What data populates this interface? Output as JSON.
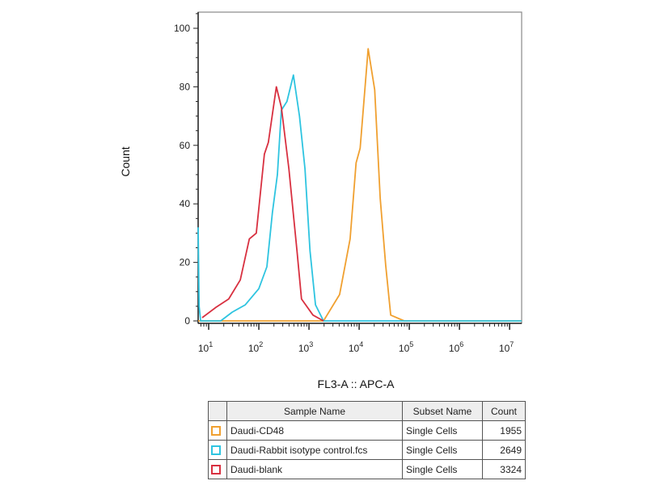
{
  "chart_data": {
    "type": "line",
    "title": "",
    "xlabel": "FL3-A :: APC-A",
    "ylabel": "Count",
    "x_scale": "log10",
    "xlim_log10": [
      0.79,
      7.24
    ],
    "ylim": [
      0,
      105
    ],
    "y_ticks": [
      0,
      20,
      40,
      60,
      80,
      100
    ],
    "x_ticks": [
      {
        "base": "10",
        "exp": "1",
        "log10": 1
      },
      {
        "base": "10",
        "exp": "2",
        "log10": 2
      },
      {
        "base": "10",
        "exp": "3",
        "log10": 3
      },
      {
        "base": "10",
        "exp": "4",
        "log10": 4
      },
      {
        "base": "10",
        "exp": "5",
        "log10": 5
      },
      {
        "base": "10",
        "exp": "6",
        "log10": 6
      },
      {
        "base": "10",
        "exp": "7",
        "log10": 7
      }
    ],
    "grid": false,
    "series": [
      {
        "name": "Daudi-CD48",
        "color": "#f0a030",
        "x_log10": [
          0.79,
          3.29,
          3.61,
          3.82,
          3.94,
          4.02,
          4.18,
          4.31,
          4.42,
          4.53,
          4.63,
          4.9,
          7.24
        ],
        "values": [
          0,
          0,
          9,
          28,
          54,
          59,
          93,
          79,
          42,
          19,
          2,
          0,
          0
        ]
      },
      {
        "name": "Daudi-Rabbit isotype control.fcs",
        "color": "#2ec4e0",
        "x_log10": [
          0.79,
          0.81,
          0.84,
          1.24,
          1.47,
          1.73,
          2.0,
          2.16,
          2.27,
          2.37,
          2.45,
          2.56,
          2.69,
          2.81,
          2.92,
          3.02,
          3.13,
          3.29,
          7.24
        ],
        "values": [
          32,
          5,
          0,
          0,
          3,
          5.5,
          11,
          18.5,
          37,
          50,
          72,
          75,
          84,
          70,
          52,
          24,
          5.5,
          0,
          0
        ]
      },
      {
        "name": "Daudi-blank",
        "color": "#d83040",
        "x_log10": [
          0.87,
          1.15,
          1.4,
          1.63,
          1.81,
          1.95,
          2.11,
          2.19,
          2.35,
          2.45,
          2.6,
          2.76,
          2.85,
          3.08,
          3.29
        ],
        "values": [
          1.1,
          4.7,
          7.5,
          14,
          28,
          30,
          57,
          61,
          80,
          73,
          52,
          24,
          7.5,
          2,
          0
        ]
      }
    ]
  },
  "legend_table": {
    "headers": [
      "Sample Name",
      "Subset Name",
      "Count"
    ],
    "rows": [
      {
        "sample": "Daudi-CD48",
        "subset": "Single Cells",
        "count": "1955",
        "color": "#f0a030"
      },
      {
        "sample": "Daudi-Rabbit isotype control.fcs",
        "subset": "Single Cells",
        "count": "2649",
        "color": "#2ec4e0"
      },
      {
        "sample": "Daudi-blank",
        "subset": "Single Cells",
        "count": "3324",
        "color": "#d83040"
      }
    ]
  }
}
